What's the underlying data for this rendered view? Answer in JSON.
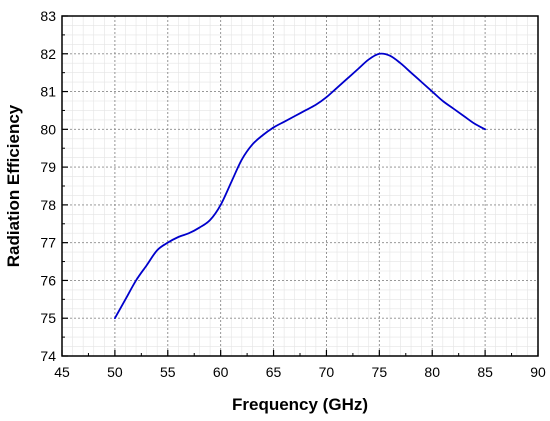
{
  "chart_data": {
    "type": "line",
    "title": "",
    "xlabel": "Frequency (GHz)",
    "ylabel": "Radiation Efficiency",
    "xlim": [
      45,
      90
    ],
    "ylim": [
      74,
      83
    ],
    "xticks": [
      45,
      50,
      55,
      60,
      65,
      70,
      75,
      80,
      85,
      90
    ],
    "yticks": [
      74,
      75,
      76,
      77,
      78,
      79,
      80,
      81,
      82,
      83
    ],
    "grid": true,
    "grid_style": "dotted",
    "legend": "none",
    "series": [
      {
        "color": "#0000cc",
        "x": [
          50,
          51,
          52,
          53,
          54,
          55,
          56,
          57,
          58,
          59,
          60,
          61,
          62,
          63,
          64,
          65,
          66,
          67,
          68,
          69,
          70,
          71,
          72,
          73,
          74,
          75,
          76,
          77,
          78,
          79,
          80,
          81,
          82,
          83,
          84,
          85
        ],
        "y": [
          75.0,
          75.5,
          76.0,
          76.4,
          76.8,
          77.0,
          77.15,
          77.25,
          77.4,
          77.6,
          78.0,
          78.6,
          79.2,
          79.6,
          79.85,
          80.05,
          80.2,
          80.35,
          80.5,
          80.65,
          80.85,
          81.1,
          81.35,
          81.6,
          81.85,
          82.0,
          81.95,
          81.75,
          81.5,
          81.25,
          81.0,
          80.75,
          80.55,
          80.35,
          80.15,
          80.0
        ]
      }
    ]
  }
}
